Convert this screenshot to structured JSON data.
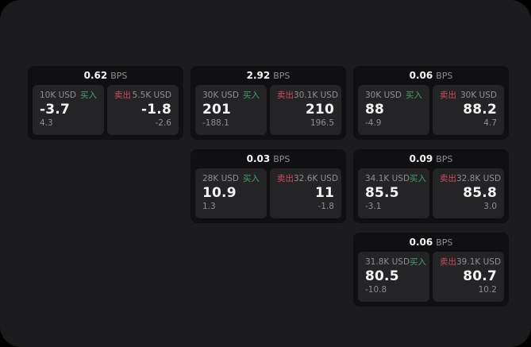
{
  "labels": {
    "buy": "买入",
    "sell": "卖出",
    "bps_unit": "BPS"
  },
  "colors": {
    "background": "#000000",
    "panel": "#1c1c1e",
    "card": "#101012",
    "tile": "#242427",
    "buy_accent": "#40a368",
    "sell_accent": "#cd4a5e",
    "text_primary": "#f5f5f5",
    "text_muted": "#8f8f8f"
  },
  "cards": [
    {
      "bps": "0.62",
      "buy": {
        "amount": "10K USD",
        "value": "-3.7",
        "sub": "4.3"
      },
      "sell": {
        "amount": "5.5K USD",
        "value": "-1.8",
        "sub": "-2.6"
      }
    },
    {
      "bps": "2.92",
      "buy": {
        "amount": "30K USD",
        "value": "201",
        "sub": "-188.1"
      },
      "sell": {
        "amount": "30.1K USD",
        "value": "210",
        "sub": "196.5"
      }
    },
    {
      "bps": "0.06",
      "buy": {
        "amount": "30K USD",
        "value": "88",
        "sub": "-4.9"
      },
      "sell": {
        "amount": "30K USD",
        "value": "88.2",
        "sub": "4.7"
      }
    },
    {
      "bps": "0.03",
      "buy": {
        "amount": "28K USD",
        "value": "10.9",
        "sub": "1.3"
      },
      "sell": {
        "amount": "32.6K USD",
        "value": "11",
        "sub": "-1.8"
      }
    },
    {
      "bps": "0.09",
      "buy": {
        "amount": "34.1K USD",
        "value": "85.5",
        "sub": "-3.1"
      },
      "sell": {
        "amount": "32.8K USD",
        "value": "85.8",
        "sub": "3.0"
      }
    },
    {
      "bps": "0.06",
      "buy": {
        "amount": "31.8K USD",
        "value": "80.5",
        "sub": "-10.8"
      },
      "sell": {
        "amount": "39.1K USD",
        "value": "80.7",
        "sub": "10.2"
      }
    }
  ]
}
